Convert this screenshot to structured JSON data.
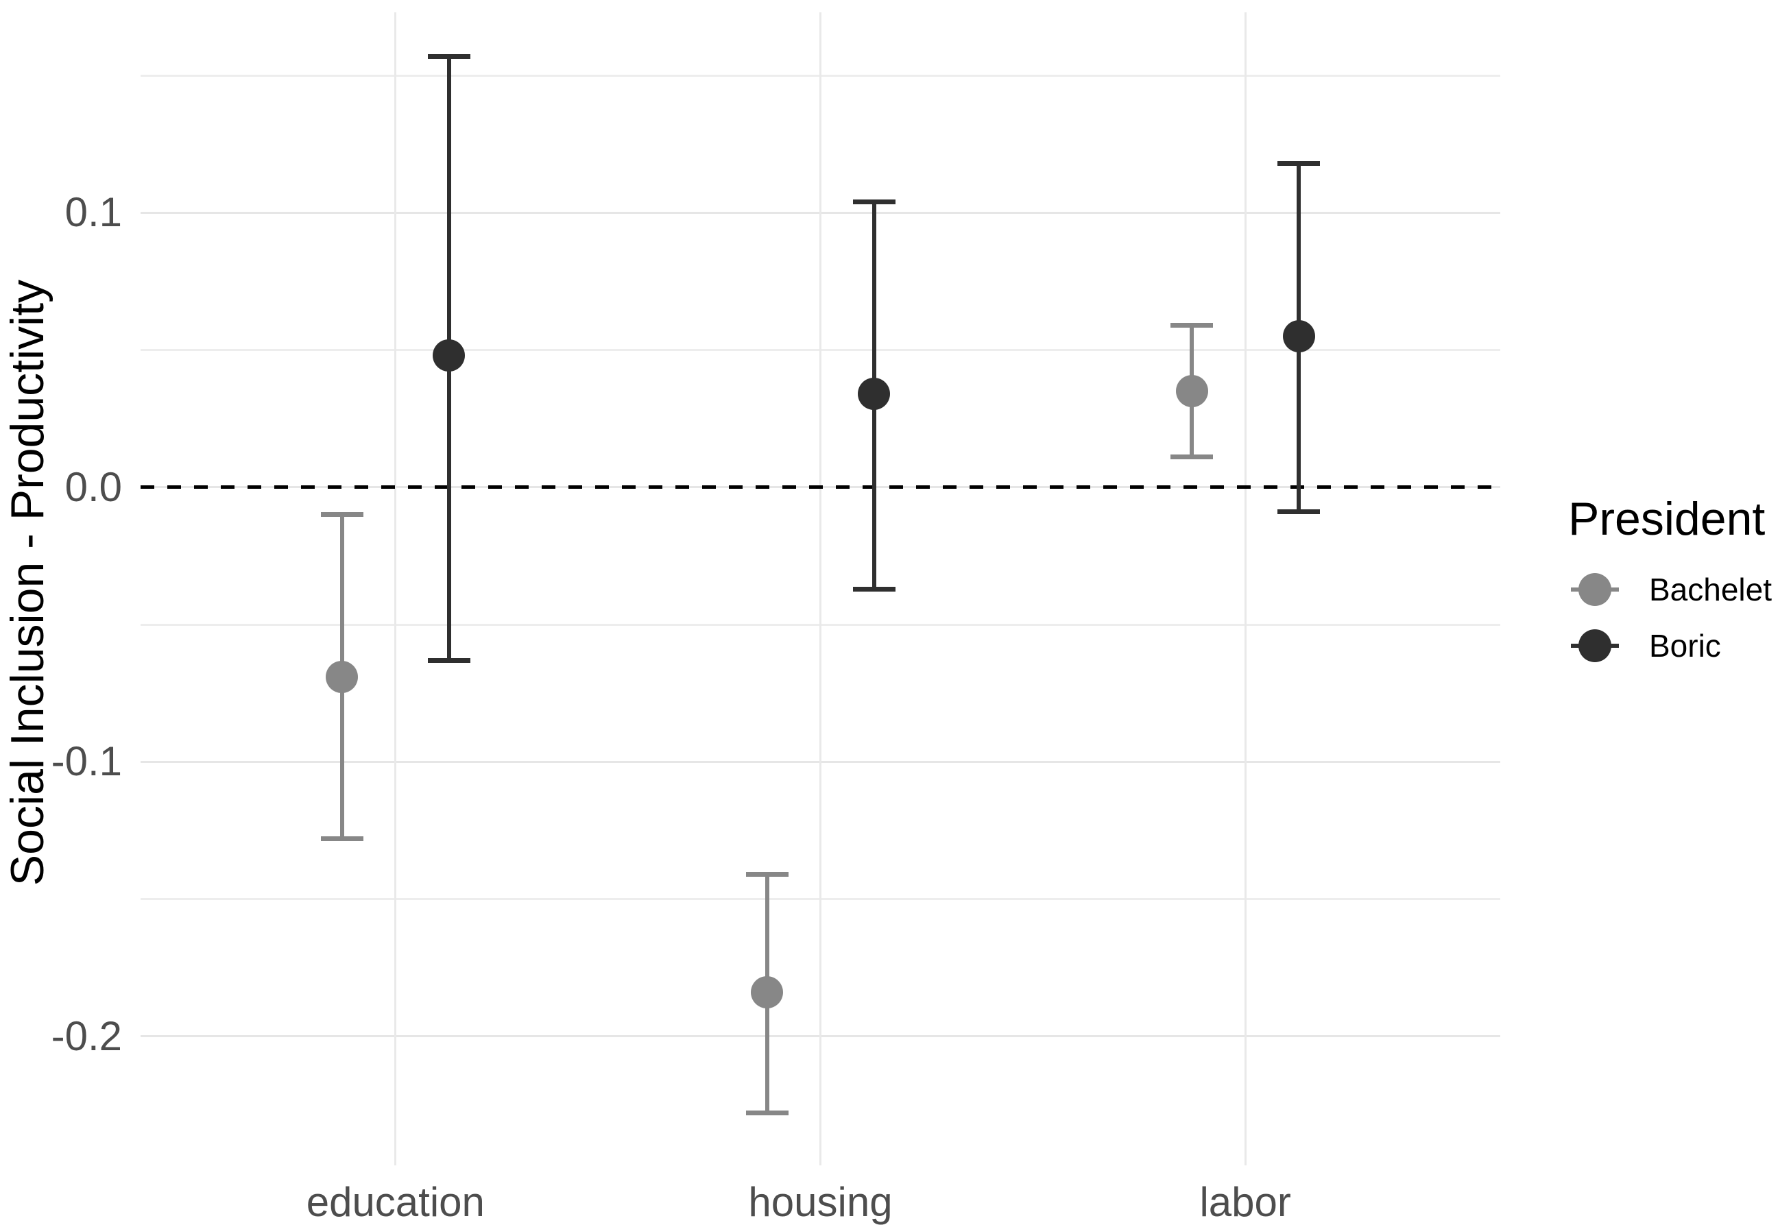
{
  "chart_data": {
    "type": "pointrange",
    "title": "",
    "xlabel": "",
    "ylabel": "Social Inclusion - Productivity",
    "categories": [
      "education",
      "housing",
      "labor"
    ],
    "series": [
      {
        "name": "Bachelet",
        "color": "#878787",
        "points": [
          {
            "category": "education",
            "estimate": -0.069,
            "lower": -0.128,
            "upper": -0.01
          },
          {
            "category": "housing",
            "estimate": -0.184,
            "lower": -0.228,
            "upper": -0.141
          },
          {
            "category": "labor",
            "estimate": 0.035,
            "lower": 0.011,
            "upper": 0.059
          }
        ]
      },
      {
        "name": "Boric",
        "color": "#2f2f2f",
        "points": [
          {
            "category": "education",
            "estimate": 0.048,
            "lower": -0.063,
            "upper": 0.157
          },
          {
            "category": "housing",
            "estimate": 0.034,
            "lower": -0.037,
            "upper": 0.104
          },
          {
            "category": "labor",
            "estimate": 0.055,
            "lower": -0.009,
            "upper": 0.118
          }
        ]
      }
    ],
    "y_axis": {
      "ticks": [
        0.1,
        0.0,
        -0.1,
        -0.2
      ],
      "tick_labels": [
        "0.1",
        "0.0",
        "-0.1",
        "-0.2"
      ],
      "minor_gridlines": [
        0.15,
        0.05,
        -0.05,
        -0.15
      ],
      "range": [
        -0.247,
        0.173
      ]
    },
    "reference_line": {
      "y": 0.0,
      "style": "dashed",
      "color": "#000000"
    },
    "grid": true,
    "legend": {
      "title": "President",
      "position": "right"
    }
  },
  "colors": {
    "background": "#ffffff",
    "grid_major": "#e6e6e6",
    "grid_minor": "#ededed",
    "axis_text": "#4d4d4d",
    "title_text": "#000000",
    "bachelet": "#878787",
    "boric": "#2f2f2f",
    "reference_line": "#000000"
  }
}
